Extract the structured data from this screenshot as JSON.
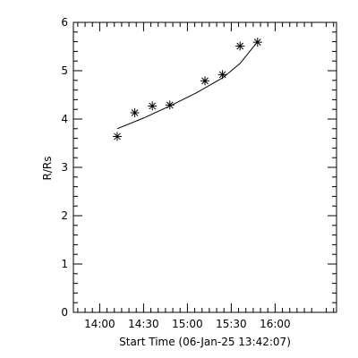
{
  "chart_data": {
    "type": "scatter",
    "xlabel": "Start Time (06-Jan-25 13:42:07)",
    "ylabel": "R/Rs",
    "x_unit": "time (HH:MM, 06-Jan-25)",
    "xlim": [
      "13:42",
      "16:42"
    ],
    "ylim": [
      0,
      6
    ],
    "x_ticks": [
      "14:00",
      "14:30",
      "15:00",
      "15:30",
      "16:00"
    ],
    "y_ticks": [
      "0",
      "1",
      "2",
      "3",
      "4",
      "5",
      "6"
    ],
    "grid": false,
    "legend": "none",
    "marker": "asterisk",
    "points": [
      {
        "time": "14:12",
        "r": 3.64
      },
      {
        "time": "14:24",
        "r": 4.13
      },
      {
        "time": "14:36",
        "r": 4.27
      },
      {
        "time": "14:48",
        "r": 4.29
      },
      {
        "time": "15:12",
        "r": 4.79
      },
      {
        "time": "15:24",
        "r": 4.92
      },
      {
        "time": "15:36",
        "r": 5.51
      },
      {
        "time": "15:48",
        "r": 5.59
      }
    ],
    "fit_line": [
      {
        "time": "14:12",
        "r": 3.8
      },
      {
        "time": "14:30",
        "r": 4.02
      },
      {
        "time": "14:48",
        "r": 4.27
      },
      {
        "time": "15:06",
        "r": 4.54
      },
      {
        "time": "15:24",
        "r": 4.85
      },
      {
        "time": "15:36",
        "r": 5.15
      },
      {
        "time": "15:48",
        "r": 5.6
      }
    ]
  }
}
